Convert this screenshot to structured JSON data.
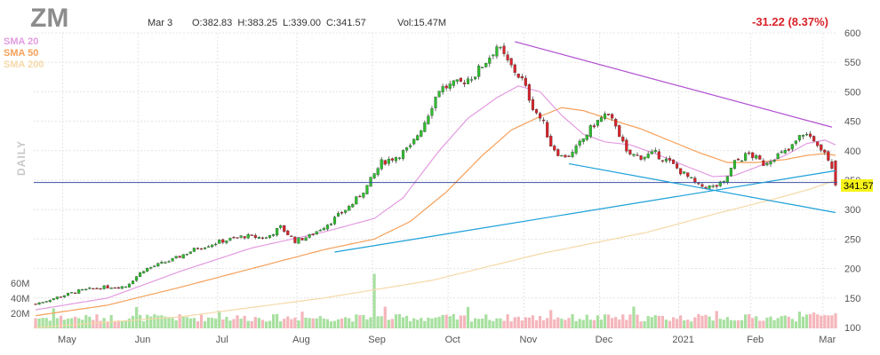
{
  "header": {
    "ticker": "ZM",
    "date": "Mar 3",
    "ohlc_text": "O:382.83  H:383.25  L:339.00  C:341.57",
    "volume_text": "Vol:15.47M",
    "change_text": "-31.22 (8.37%)"
  },
  "legend": [
    {
      "label": "SMA 20",
      "color": "#e39be0"
    },
    {
      "label": "SMA 50",
      "color": "#f5a05a"
    },
    {
      "label": "SMA 200",
      "color": "#f5d9a8"
    }
  ],
  "side_label": "DAILY",
  "last_price_label": "341.57",
  "colors": {
    "up": "#2dbd2d",
    "down": "#d8232a",
    "vol_up": "#a8e0a0",
    "vol_down": "#f4b6bb",
    "trend_purple": "#b14fd1",
    "trend_blue": "#1a9fd8",
    "price_line": "#3b4fa0",
    "highlight": "#f7f31a"
  },
  "chart_data": {
    "type": "candlestick",
    "title": "ZM",
    "subtitle": "Mar 3  O:382.83  H:383.25  L:339.00  C:341.57  Vol:15.47M",
    "ylim": [
      100,
      600
    ],
    "y_ticks": [
      "600",
      "550",
      "500",
      "450",
      "400",
      "350",
      "300",
      "250",
      "200",
      "150",
      "100"
    ],
    "volume_ticks": [
      "60M",
      "40M",
      "20M"
    ],
    "volume_max_millions": 75,
    "x_months": [
      "May",
      "Jun",
      "Jul",
      "Aug",
      "Sep",
      "Oct",
      "Nov",
      "Dec",
      "2021",
      "Feb",
      "Mar"
    ],
    "month_start_index": [
      8,
      29,
      51,
      73,
      94,
      115,
      136,
      157,
      179,
      199,
      219
    ],
    "candle_count": 223,
    "last_close": 341.57,
    "series_names": [
      "SMA 20",
      "SMA 50",
      "SMA 200"
    ],
    "price_anchors": [
      [
        0,
        140
      ],
      [
        8,
        155
      ],
      [
        12,
        162
      ],
      [
        18,
        168
      ],
      [
        25,
        170
      ],
      [
        30,
        198
      ],
      [
        38,
        215
      ],
      [
        45,
        235
      ],
      [
        52,
        247
      ],
      [
        58,
        255
      ],
      [
        64,
        252
      ],
      [
        68,
        270
      ],
      [
        72,
        247
      ],
      [
        76,
        255
      ],
      [
        82,
        280
      ],
      [
        88,
        310
      ],
      [
        92,
        340
      ],
      [
        96,
        380
      ],
      [
        100,
        390
      ],
      [
        104,
        405
      ],
      [
        108,
        450
      ],
      [
        112,
        505
      ],
      [
        118,
        515
      ],
      [
        122,
        530
      ],
      [
        126,
        560
      ],
      [
        128,
        578
      ],
      [
        131,
        550
      ],
      [
        135,
        520
      ],
      [
        138,
        475
      ],
      [
        141,
        445
      ],
      [
        143,
        410
      ],
      [
        146,
        390
      ],
      [
        149,
        395
      ],
      [
        152,
        420
      ],
      [
        155,
        445
      ],
      [
        158,
        460
      ],
      [
        161,
        445
      ],
      [
        164,
        395
      ],
      [
        168,
        390
      ],
      [
        172,
        395
      ],
      [
        176,
        380
      ],
      [
        180,
        360
      ],
      [
        184,
        340
      ],
      [
        188,
        338
      ],
      [
        191,
        345
      ],
      [
        194,
        380
      ],
      [
        198,
        395
      ],
      [
        202,
        378
      ],
      [
        205,
        390
      ],
      [
        209,
        400
      ],
      [
        213,
        430
      ],
      [
        216,
        420
      ],
      [
        219,
        400
      ],
      [
        221,
        375
      ],
      [
        222,
        341.57
      ]
    ],
    "sma20_anchors": [
      [
        0,
        130
      ],
      [
        20,
        150
      ],
      [
        40,
        195
      ],
      [
        60,
        235
      ],
      [
        80,
        262
      ],
      [
        94,
        285
      ],
      [
        102,
        320
      ],
      [
        112,
        400
      ],
      [
        120,
        455
      ],
      [
        128,
        490
      ],
      [
        134,
        510
      ],
      [
        140,
        500
      ],
      [
        146,
        460
      ],
      [
        152,
        428
      ],
      [
        158,
        415
      ],
      [
        165,
        410
      ],
      [
        172,
        395
      ],
      [
        180,
        375
      ],
      [
        188,
        356
      ],
      [
        194,
        358
      ],
      [
        200,
        372
      ],
      [
        208,
        392
      ],
      [
        214,
        412
      ],
      [
        219,
        418
      ],
      [
        222,
        410
      ]
    ],
    "sma50_anchors": [
      [
        0,
        120
      ],
      [
        20,
        138
      ],
      [
        40,
        168
      ],
      [
        60,
        200
      ],
      [
        80,
        232
      ],
      [
        94,
        250
      ],
      [
        104,
        280
      ],
      [
        114,
        330
      ],
      [
        124,
        392
      ],
      [
        132,
        435
      ],
      [
        140,
        458
      ],
      [
        146,
        473
      ],
      [
        152,
        468
      ],
      [
        160,
        452
      ],
      [
        168,
        437
      ],
      [
        176,
        417
      ],
      [
        184,
        397
      ],
      [
        192,
        380
      ],
      [
        200,
        380
      ],
      [
        208,
        385
      ],
      [
        214,
        392
      ],
      [
        219,
        395
      ],
      [
        222,
        392
      ]
    ],
    "sma200_anchors": [
      [
        0,
        100
      ],
      [
        40,
        118
      ],
      [
        80,
        150
      ],
      [
        110,
        180
      ],
      [
        140,
        225
      ],
      [
        170,
        262
      ],
      [
        190,
        295
      ],
      [
        205,
        318
      ],
      [
        215,
        335
      ],
      [
        222,
        350
      ]
    ],
    "trendlines": [
      {
        "name": "resistance",
        "from": [
          133,
          585
        ],
        "to": [
          221,
          440
        ]
      },
      {
        "name": "channel-lower",
        "from": [
          148,
          378
        ],
        "to": [
          222,
          295
        ]
      },
      {
        "name": "support",
        "from": [
          83,
          228
        ],
        "to": [
          222,
          366
        ]
      }
    ],
    "horizontal_line": 346
  }
}
